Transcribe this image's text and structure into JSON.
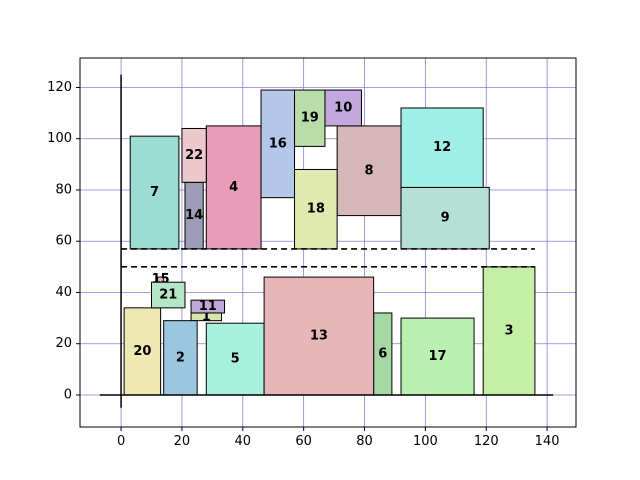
{
  "chart_data": {
    "type": "rectangle-packing",
    "title": "",
    "xlabel": "",
    "ylabel": "",
    "xlim": [
      -13.5,
      149.5
    ],
    "ylim": [
      -12.5,
      131.5
    ],
    "xticks": [
      0,
      20,
      40,
      60,
      80,
      100,
      120,
      140
    ],
    "yticks": [
      0,
      20,
      40,
      60,
      80,
      100,
      120
    ],
    "grid": true,
    "grid_color": "#8080e0",
    "rectangles": [
      {
        "id": "1",
        "x": 23,
        "y": 29,
        "w": 10,
        "h": 3,
        "color": "#d6e8a8"
      },
      {
        "id": "2",
        "x": 14,
        "y": 0,
        "w": 11,
        "h": 29,
        "color": "#9cc6df"
      },
      {
        "id": "3",
        "x": 119,
        "y": 0,
        "w": 17,
        "h": 50,
        "color": "#c4efa4"
      },
      {
        "id": "4",
        "x": 28,
        "y": 57,
        "w": 18,
        "h": 48,
        "color": "#e99cb8"
      },
      {
        "id": "5",
        "x": 28,
        "y": 0,
        "w": 19,
        "h": 28,
        "color": "#a6f0dc"
      },
      {
        "id": "6",
        "x": 83,
        "y": 0,
        "w": 6,
        "h": 32,
        "color": "#a6d8a4"
      },
      {
        "id": "7",
        "x": 3,
        "y": 57,
        "w": 16,
        "h": 44,
        "color": "#9ddcd2"
      },
      {
        "id": "8",
        "x": 71,
        "y": 70,
        "w": 21,
        "h": 35,
        "color": "#d6b6b8"
      },
      {
        "id": "9",
        "x": 92,
        "y": 57,
        "w": 29,
        "h": 24,
        "color": "#b6e0d6"
      },
      {
        "id": "10",
        "x": 67,
        "y": 105,
        "w": 12,
        "h": 14,
        "color": "#c2a8dc"
      },
      {
        "id": "11",
        "x": 23,
        "y": 32,
        "w": 11,
        "h": 5,
        "color": "#c0a8d6"
      },
      {
        "id": "12",
        "x": 92,
        "y": 81,
        "w": 27,
        "h": 31,
        "color": "#a0f0e8"
      },
      {
        "id": "13",
        "x": 47,
        "y": 0,
        "w": 36,
        "h": 46,
        "color": "#e6b6b8"
      },
      {
        "id": "14",
        "x": 21,
        "y": 57,
        "w": 6,
        "h": 26,
        "color": "#9c9cb6"
      },
      {
        "id": "15",
        "x": 12,
        "y": 44,
        "w": 2,
        "h": 2,
        "color": "#f0b6c2"
      },
      {
        "id": "16",
        "x": 46,
        "y": 77,
        "w": 11,
        "h": 42,
        "color": "#b6c8ea"
      },
      {
        "id": "17",
        "x": 92,
        "y": 0,
        "w": 24,
        "h": 30,
        "color": "#bcf0b2"
      },
      {
        "id": "18",
        "x": 57,
        "y": 57,
        "w": 14,
        "h": 31,
        "color": "#e0eab0"
      },
      {
        "id": "19",
        "x": 57,
        "y": 97,
        "w": 10,
        "h": 22,
        "color": "#b8dcaa"
      },
      {
        "id": "20",
        "x": 1,
        "y": 0,
        "w": 12,
        "h": 34,
        "color": "#ede8b4"
      },
      {
        "id": "21",
        "x": 10,
        "y": 34,
        "w": 11,
        "h": 10,
        "color": "#b6e6c8"
      },
      {
        "id": "22",
        "x": 20,
        "y": 83,
        "w": 8,
        "h": 21,
        "color": "#ebc8cc"
      }
    ],
    "annotations": {
      "solid_lines": [
        {
          "x1": -7,
          "y1": 0,
          "x2": 142,
          "y2": 0
        },
        {
          "x1": 0,
          "y1": -5,
          "x2": 0,
          "y2": 125
        }
      ],
      "dashed_lines": [
        {
          "x1": 0,
          "y1": 50,
          "x2": 136,
          "y2": 50
        },
        {
          "x1": 0,
          "y1": 57,
          "x2": 136,
          "y2": 57
        }
      ]
    }
  }
}
